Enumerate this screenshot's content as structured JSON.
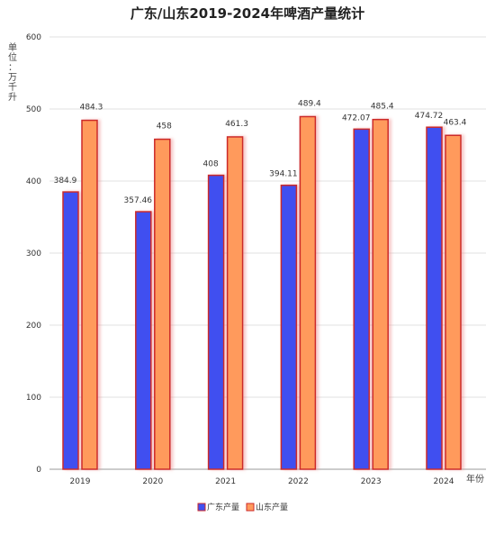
{
  "chart_data": {
    "type": "bar",
    "title": "广东/山东2019-2024年啤酒产量统计",
    "ylabel": "单位：万千升",
    "xlabel": "年份",
    "categories": [
      "2019",
      "2020",
      "2021",
      "2022",
      "2023",
      "2024"
    ],
    "series": [
      {
        "name": "广东产量",
        "values": [
          384.9,
          357.46,
          408,
          394.11,
          472.07,
          474.72
        ],
        "labels": [
          "384.9",
          "357.46",
          "408",
          "394.11",
          "472.07",
          "474.72"
        ],
        "color": "#4050f0"
      },
      {
        "name": "山东产量",
        "values": [
          484.3,
          458,
          461.3,
          489.4,
          485.4,
          463.4
        ],
        "labels": [
          "484.3",
          "458",
          "461.3",
          "489.4",
          "485.4",
          "463.4"
        ],
        "color": "#ff9a5c"
      }
    ],
    "bar_stroke": "#cc2a2a",
    "ylim": [
      0,
      600
    ],
    "yticks": [
      "0",
      "100",
      "200",
      "300",
      "400",
      "500",
      "600"
    ],
    "grid": true,
    "legend_position": "bottom"
  }
}
